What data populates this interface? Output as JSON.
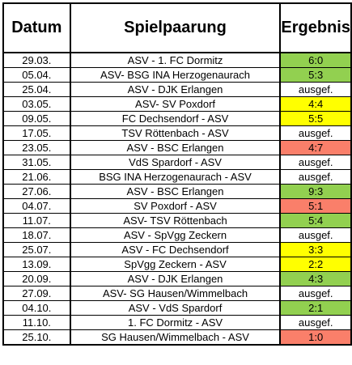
{
  "headers": {
    "date": "Datum",
    "match": "Spielpaarung",
    "result": "Ergebnis"
  },
  "colors": {
    "win": "#92d050",
    "draw": "#ffff00",
    "loss": "#fa7f6a"
  },
  "rows": [
    {
      "date": "29.03.",
      "match": "ASV - 1. FC Dormitz",
      "result": "6:0",
      "status": "win"
    },
    {
      "date": "05.04.",
      "match": "ASV- BSG INA Herzogenaurach",
      "result": "5:3",
      "status": "win"
    },
    {
      "date": "25.04.",
      "match": "ASV - DJK Erlangen",
      "result": "ausgef.",
      "status": "none"
    },
    {
      "date": "03.05.",
      "match": "ASV- SV Poxdorf",
      "result": "4:4",
      "status": "draw"
    },
    {
      "date": "09.05.",
      "match": "FC Dechsendorf - ASV",
      "result": "5:5",
      "status": "draw"
    },
    {
      "date": "17.05.",
      "match": "TSV Röttenbach - ASV",
      "result": "ausgef.",
      "status": "none"
    },
    {
      "date": "23.05.",
      "match": "ASV - BSC Erlangen",
      "result": "4:7",
      "status": "loss"
    },
    {
      "date": "31.05.",
      "match": "VdS Spardorf - ASV",
      "result": "ausgef.",
      "status": "none"
    },
    {
      "date": "21.06.",
      "match": "BSG INA Herzogenaurach - ASV",
      "result": "ausgef.",
      "status": "none"
    },
    {
      "date": "27.06.",
      "match": "ASV - BSC Erlangen",
      "result": "9:3",
      "status": "win"
    },
    {
      "date": "04.07.",
      "match": "SV Poxdorf - ASV",
      "result": "5:1",
      "status": "loss"
    },
    {
      "date": "11.07.",
      "match": "ASV- TSV Röttenbach",
      "result": "5:4",
      "status": "win"
    },
    {
      "date": "18.07.",
      "match": "ASV - SpVgg Zeckern",
      "result": "ausgef.",
      "status": "none"
    },
    {
      "date": "25.07.",
      "match": "ASV - FC Dechsendorf",
      "result": "3:3",
      "status": "draw"
    },
    {
      "date": "13.09.",
      "match": "SpVgg Zeckern - ASV",
      "result": "2:2",
      "status": "draw"
    },
    {
      "date": "20.09.",
      "match": "ASV - DJK Erlangen",
      "result": "4:3",
      "status": "win"
    },
    {
      "date": "27.09.",
      "match": "ASV- SG Hausen/Wimmelbach",
      "result": "ausgef.",
      "status": "none"
    },
    {
      "date": "04.10.",
      "match": "ASV - VdS Spardorf",
      "result": "2:1",
      "status": "win"
    },
    {
      "date": "11.10.",
      "match": "1. FC Dormitz - ASV",
      "result": "ausgef.",
      "status": "none"
    },
    {
      "date": "25.10.",
      "match": "SG Hausen/Wimmelbach - ASV",
      "result": "1:0",
      "status": "loss"
    }
  ]
}
